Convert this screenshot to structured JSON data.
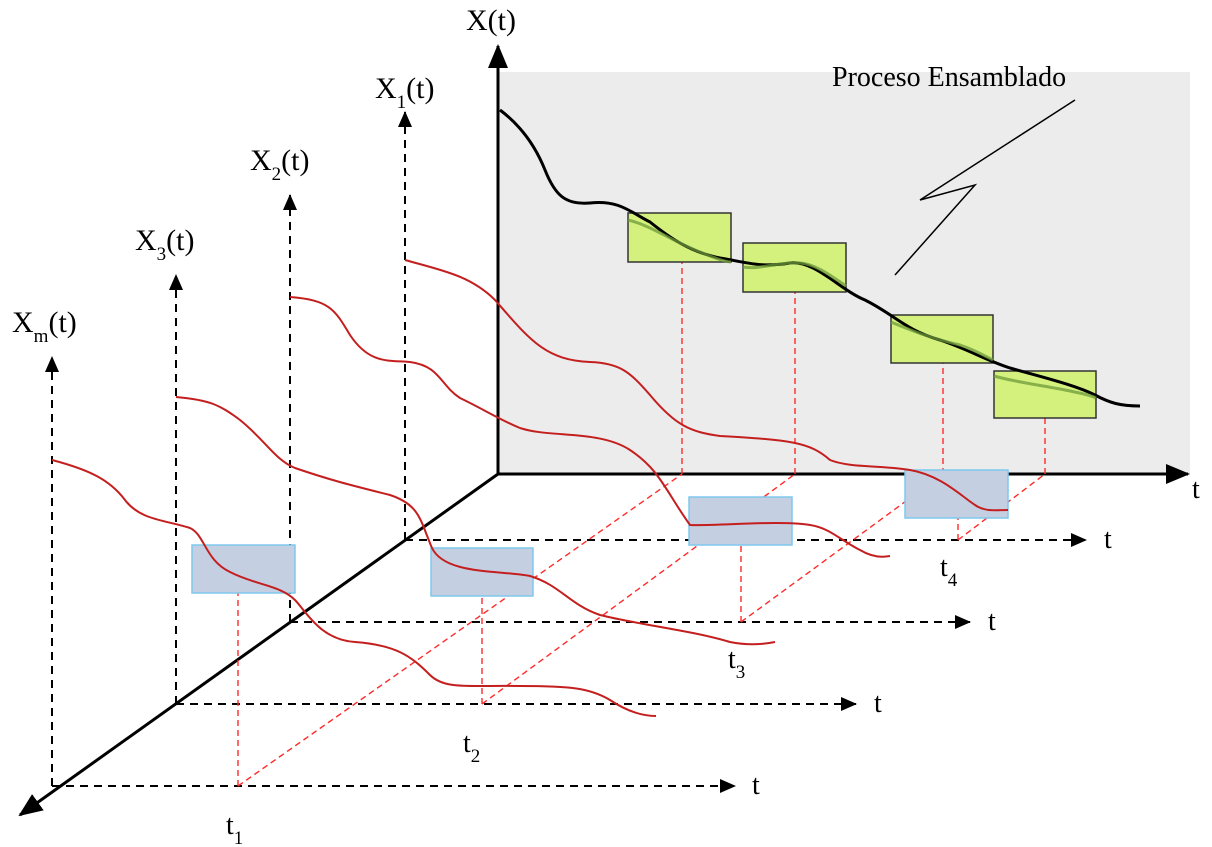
{
  "colors": {
    "panel": "#ececec",
    "realization_curve": "#c41f1f",
    "ensemble_curve": "#000000",
    "ensemble_window": "#d4f17e",
    "realization_window": "#c5cfe2",
    "projection_line": "#ff2b2b"
  },
  "main_axis": {
    "label": "X",
    "arg": "(t)",
    "time_label": "t"
  },
  "annotation": "Proceso Ensamblado",
  "realizations": [
    {
      "label": "X",
      "sub": "1",
      "arg": "(t)",
      "time_label": "t",
      "time_mark": "t",
      "time_mark_sub": "4"
    },
    {
      "label": "X",
      "sub": "2",
      "arg": "(t)",
      "time_label": "t",
      "time_mark": "t",
      "time_mark_sub": "3"
    },
    {
      "label": "X",
      "sub": "3",
      "arg": "(t)",
      "time_label": "t",
      "time_mark": "t",
      "time_mark_sub": "2"
    },
    {
      "label": "X",
      "sub": "m",
      "arg": "(t)",
      "time_label": "t",
      "time_mark": "t",
      "time_mark_sub": "1"
    }
  ]
}
